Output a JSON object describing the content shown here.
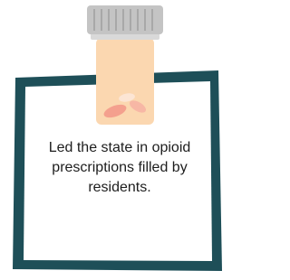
{
  "caption": "Led the state in opioid prescriptions filled by residents."
}
